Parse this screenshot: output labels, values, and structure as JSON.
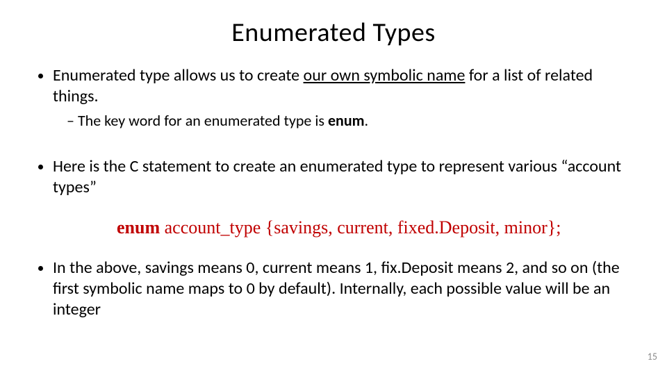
{
  "slide": {
    "title": "Enumerated Types",
    "page_number": "15",
    "colors": {
      "text": "#000000",
      "code": "#c00000",
      "page_num": "#8a8a8a",
      "background": "#ffffff"
    },
    "fonts": {
      "body_family": "Calibri",
      "code_family": "Times New Roman",
      "title_size_pt": 38,
      "body_size_pt": 24,
      "sub_size_pt": 22,
      "code_size_pt": 26
    },
    "bullets": {
      "b1_pre": "Enumerated type allows us to create ",
      "b1_uline": "our own symbolic name",
      "b1_post": " for a list of related things.",
      "b1_sub_pre": "The key word for an enumerated type is ",
      "b1_sub_bold": "enum",
      "b1_sub_post": ".",
      "b2": "Here is the C statement to create an enumerated type to represent various “account types”",
      "b3": "In the above, savings means 0, current means 1, fix.Deposit means 2, and so on (the first symbolic name maps to 0 by default). Internally, each possible value will be an integer"
    },
    "code": {
      "kw": "enum",
      "rest": " account_type {savings, current, fixed.Deposit, minor};"
    }
  }
}
